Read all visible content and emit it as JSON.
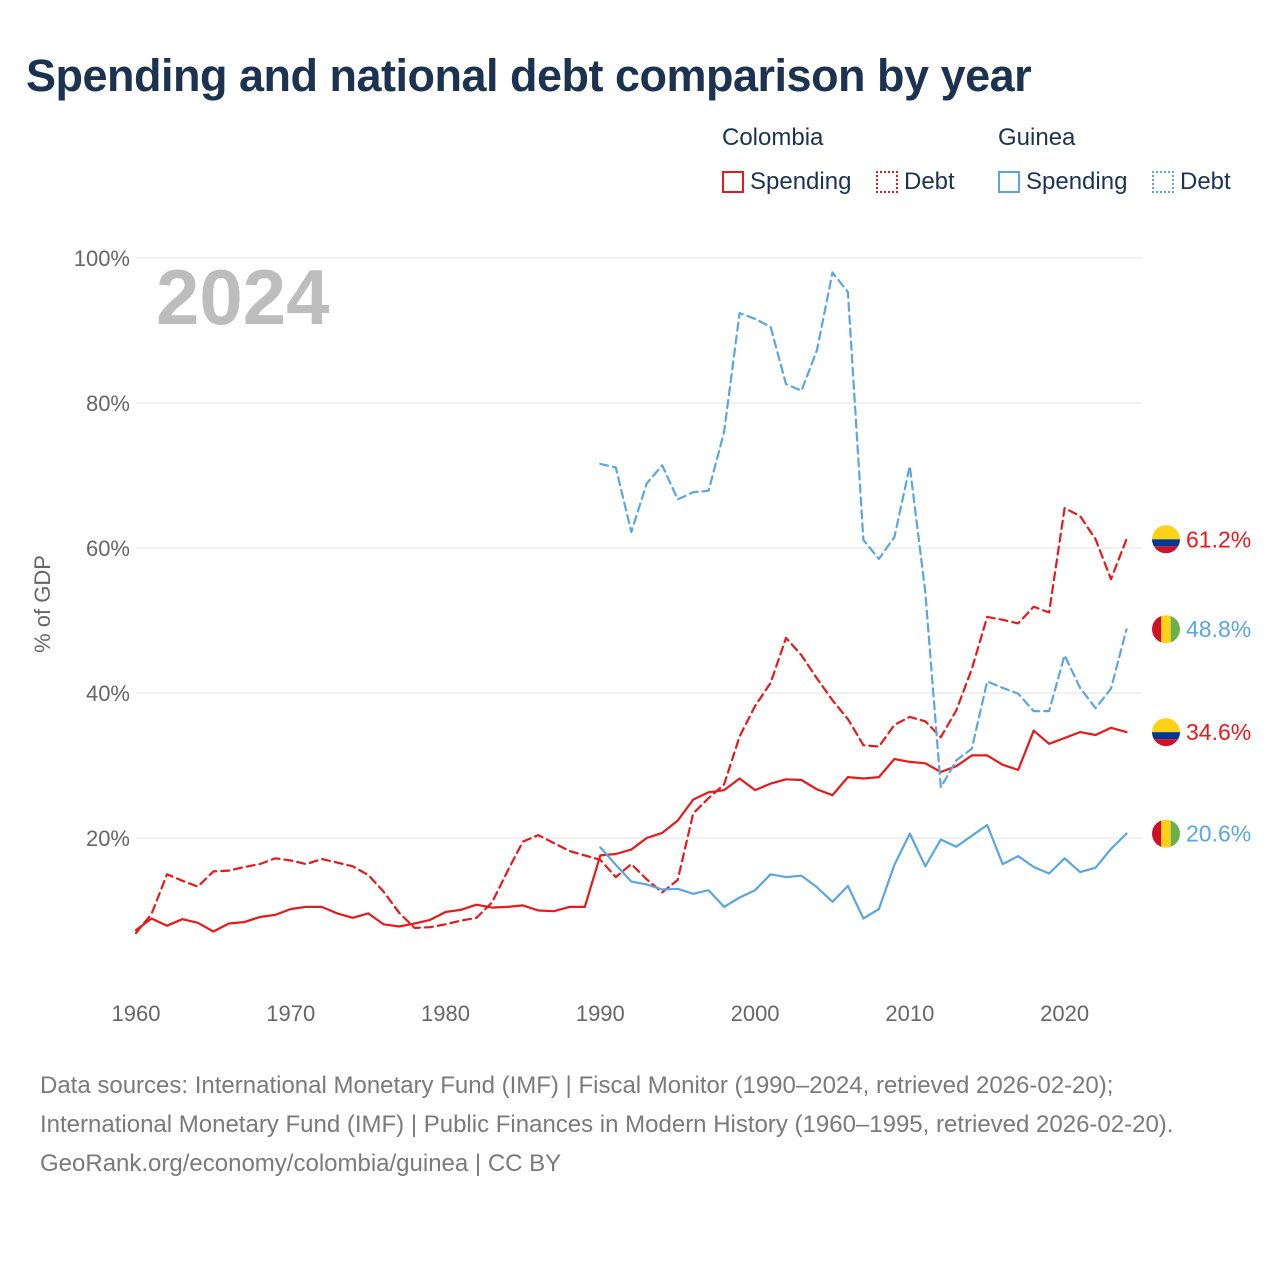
{
  "title": "Spending and national debt comparison by year",
  "legend": {
    "groups": [
      {
        "name": "Colombia",
        "color": "#e8191a",
        "items": [
          {
            "label": "Spending",
            "style": "solid"
          },
          {
            "label": "Debt",
            "style": "dotted"
          }
        ]
      },
      {
        "name": "Guinea",
        "color": "#5aa6e0",
        "items": [
          {
            "label": "Spending",
            "style": "solid"
          },
          {
            "label": "Debt",
            "style": "dotted"
          }
        ]
      }
    ]
  },
  "footer": {
    "sources": "Data sources: International Monetary Fund (IMF) | Fiscal Monitor (1990–2024, retrieved 2026-02-20); International Monetary Fund (IMF) | Public Finances in Modern History (1960–1995, retrieved 2026-02-20).",
    "credit": "GeoRank.org/economy/colombia/guinea | CC BY"
  },
  "chart_data": {
    "type": "line",
    "title": "Spending and national debt comparison by year",
    "year_label": "2024",
    "xlabel": "",
    "ylabel": "% of GDP",
    "xlim": [
      1960,
      2025
    ],
    "ylim": [
      0,
      100
    ],
    "x_ticks": [
      1960,
      1970,
      1980,
      1990,
      2000,
      2010,
      2020
    ],
    "y_ticks": [
      20,
      40,
      60,
      80,
      100
    ],
    "y_tick_labels": [
      "20%",
      "40%",
      "60%",
      "80%",
      "100%"
    ],
    "grid": true,
    "series": [
      {
        "name": "Colombia Spending",
        "country": "Colombia",
        "measure": "Spending",
        "color": "#e8191a",
        "dash": "solid",
        "end_label": "34.6%",
        "flag": "colombia",
        "x": [
          1960,
          1961,
          1962,
          1963,
          1964,
          1965,
          1966,
          1967,
          1968,
          1969,
          1970,
          1971,
          1972,
          1973,
          1974,
          1975,
          1976,
          1977,
          1978,
          1979,
          1980,
          1981,
          1982,
          1983,
          1984,
          1985,
          1986,
          1987,
          1988,
          1989,
          1990,
          1991,
          1992,
          1993,
          1994,
          1995,
          1996,
          1997,
          1998,
          1999,
          2000,
          2001,
          2002,
          2003,
          2004,
          2005,
          2006,
          2007,
          2008,
          2009,
          2010,
          2011,
          2012,
          2013,
          2014,
          2015,
          2016,
          2017,
          2018,
          2019,
          2020,
          2021,
          2022,
          2023,
          2024
        ],
        "values": [
          7.3,
          8.9,
          7.9,
          8.8,
          8.3,
          7.1,
          8.2,
          8.4,
          9.1,
          9.4,
          10.2,
          10.5,
          10.5,
          9.6,
          9.0,
          9.6,
          8.1,
          7.8,
          8.2,
          8.7,
          9.8,
          10.1,
          10.8,
          10.4,
          10.5,
          10.7,
          10.0,
          9.9,
          10.5,
          10.5,
          17.6,
          17.8,
          18.4,
          20.0,
          20.7,
          22.4,
          25.3,
          26.3,
          26.6,
          28.2,
          26.6,
          27.5,
          28.1,
          28.0,
          26.7,
          25.9,
          28.4,
          28.2,
          28.4,
          30.9,
          30.5,
          30.3,
          29.1,
          29.9,
          31.4,
          31.4,
          30.1,
          29.4,
          34.8,
          33.0,
          33.8,
          34.6,
          34.2,
          35.2,
          34.6
        ]
      },
      {
        "name": "Colombia Debt",
        "country": "Colombia",
        "measure": "Debt",
        "color": "#e8191a",
        "dash": "dashed",
        "end_label": "61.2%",
        "flag": "colombia",
        "x": [
          1960,
          1961,
          1962,
          1963,
          1964,
          1965,
          1966,
          1967,
          1968,
          1969,
          1970,
          1971,
          1972,
          1973,
          1974,
          1975,
          1976,
          1977,
          1978,
          1979,
          1980,
          1981,
          1982,
          1983,
          1984,
          1985,
          1986,
          1987,
          1988,
          1989,
          1990,
          1991,
          1992,
          1993,
          1994,
          1995,
          1996,
          1997,
          1998,
          1999,
          2000,
          2001,
          2002,
          2003,
          2004,
          2005,
          2006,
          2007,
          2008,
          2009,
          2010,
          2011,
          2012,
          2013,
          2014,
          2015,
          2016,
          2017,
          2018,
          2019,
          2020,
          2021,
          2022,
          2023,
          2024
        ],
        "values": [
          6.9,
          9.5,
          15.0,
          14.1,
          13.3,
          15.4,
          15.5,
          16.0,
          16.4,
          17.2,
          16.9,
          16.4,
          17.1,
          16.6,
          16.1,
          14.9,
          12.6,
          9.7,
          7.6,
          7.7,
          8.1,
          8.6,
          9.0,
          11.1,
          15.4,
          19.5,
          20.4,
          19.3,
          18.2,
          17.6,
          17.0,
          14.6,
          16.4,
          14.3,
          12.5,
          14.2,
          23.4,
          25.5,
          27.4,
          34.0,
          38.2,
          41.4,
          47.6,
          45.2,
          42.0,
          39.0,
          36.4,
          32.8,
          32.6,
          35.6,
          36.7,
          36.1,
          33.9,
          37.6,
          43.3,
          50.5,
          50.1,
          49.6,
          51.9,
          51.1,
          65.5,
          64.4,
          61.2,
          55.7,
          61.2
        ]
      },
      {
        "name": "Guinea Spending",
        "country": "Guinea",
        "measure": "Spending",
        "color": "#5aa6e0",
        "dash": "solid",
        "end_label": "20.6%",
        "flag": "guinea",
        "x": [
          1990,
          1991,
          1992,
          1993,
          1994,
          1995,
          1996,
          1997,
          1998,
          1999,
          2000,
          2001,
          2002,
          2003,
          2004,
          2005,
          2006,
          2007,
          2008,
          2009,
          2010,
          2011,
          2012,
          2013,
          2014,
          2015,
          2016,
          2017,
          2018,
          2019,
          2020,
          2021,
          2022,
          2023,
          2024
        ],
        "values": [
          18.7,
          16.3,
          14.0,
          13.6,
          12.9,
          13.0,
          12.3,
          12.8,
          10.5,
          11.8,
          12.8,
          15.0,
          14.6,
          14.8,
          13.2,
          11.2,
          13.4,
          8.9,
          10.2,
          16.3,
          20.6,
          16.1,
          19.8,
          18.8,
          20.3,
          21.8,
          16.4,
          17.5,
          16.0,
          15.1,
          17.2,
          15.3,
          15.9,
          18.5,
          20.6
        ]
      },
      {
        "name": "Guinea Debt",
        "country": "Guinea",
        "measure": "Debt",
        "color": "#5aa6e0",
        "dash": "dashed",
        "end_label": "48.8%",
        "flag": "guinea",
        "x": [
          1990,
          1991,
          1992,
          1993,
          1994,
          1995,
          1996,
          1997,
          1998,
          1999,
          2000,
          2001,
          2002,
          2003,
          2004,
          2005,
          2006,
          2007,
          2008,
          2009,
          2010,
          2011,
          2012,
          2013,
          2014,
          2015,
          2016,
          2017,
          2018,
          2019,
          2020,
          2021,
          2022,
          2023,
          2024
        ],
        "values": [
          71.6,
          71.1,
          62.2,
          68.9,
          71.4,
          66.7,
          67.7,
          67.9,
          76.0,
          92.4,
          91.6,
          90.5,
          82.6,
          81.7,
          87.3,
          98.0,
          95.3,
          61.1,
          58.5,
          61.5,
          71.3,
          53.9,
          27.0,
          30.7,
          32.3,
          41.6,
          40.7,
          39.9,
          37.5,
          37.5,
          45.2,
          40.7,
          37.9,
          40.6,
          48.8
        ]
      }
    ]
  }
}
